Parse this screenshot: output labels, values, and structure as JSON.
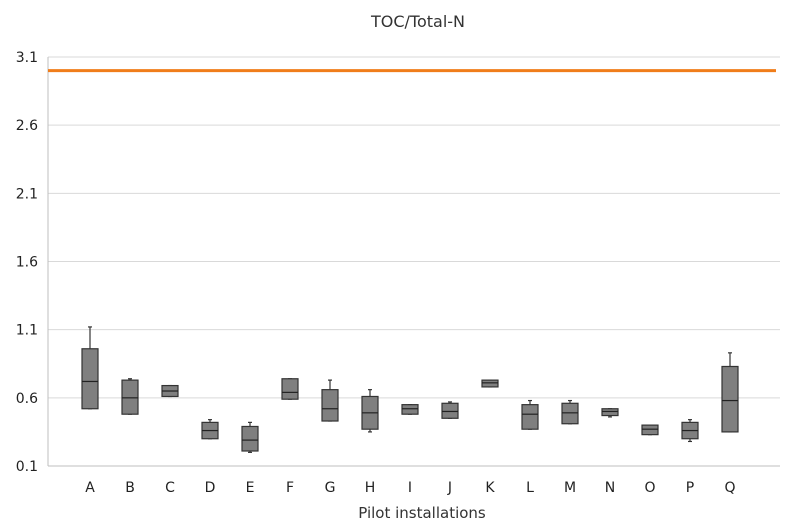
{
  "chart_data": {
    "type": "box",
    "title": "TOC/Total-N",
    "xlabel": "Pilot installations",
    "ylabel": "",
    "ylim": [
      0.1,
      3.1
    ],
    "yticks": [
      "3.1",
      "2.6",
      "2.1",
      "1.6",
      "1.1",
      "0.6",
      "0.1"
    ],
    "grid": true,
    "reference_line": {
      "value": 3.0,
      "color": "#f07d1a"
    },
    "box_color": "#7f7f7f",
    "categories": [
      "A",
      "B",
      "C",
      "D",
      "E",
      "F",
      "G",
      "H",
      "I",
      "J",
      "K",
      "L",
      "M",
      "N",
      "O",
      "P",
      "Q"
    ],
    "boxes": [
      {
        "label": "A",
        "min": 0.52,
        "q1": 0.52,
        "median": 0.72,
        "q3": 0.96,
        "max": 1.12
      },
      {
        "label": "B",
        "min": 0.48,
        "q1": 0.48,
        "median": 0.6,
        "q3": 0.73,
        "max": 0.74
      },
      {
        "label": "C",
        "min": 0.61,
        "q1": 0.61,
        "median": 0.65,
        "q3": 0.69,
        "max": 0.69
      },
      {
        "label": "D",
        "min": 0.3,
        "q1": 0.3,
        "median": 0.36,
        "q3": 0.42,
        "max": 0.44
      },
      {
        "label": "E",
        "min": 0.2,
        "q1": 0.21,
        "median": 0.29,
        "q3": 0.39,
        "max": 0.42
      },
      {
        "label": "F",
        "min": 0.59,
        "q1": 0.59,
        "median": 0.64,
        "q3": 0.74,
        "max": 0.74
      },
      {
        "label": "G",
        "min": 0.43,
        "q1": 0.43,
        "median": 0.52,
        "q3": 0.66,
        "max": 0.73
      },
      {
        "label": "H",
        "min": 0.35,
        "q1": 0.37,
        "median": 0.49,
        "q3": 0.61,
        "max": 0.66
      },
      {
        "label": "I",
        "min": 0.48,
        "q1": 0.48,
        "median": 0.52,
        "q3": 0.55,
        "max": 0.55
      },
      {
        "label": "J",
        "min": 0.45,
        "q1": 0.45,
        "median": 0.5,
        "q3": 0.56,
        "max": 0.57
      },
      {
        "label": "K",
        "min": 0.68,
        "q1": 0.68,
        "median": 0.71,
        "q3": 0.73,
        "max": 0.73
      },
      {
        "label": "L",
        "min": 0.37,
        "q1": 0.37,
        "median": 0.48,
        "q3": 0.55,
        "max": 0.58
      },
      {
        "label": "M",
        "min": 0.41,
        "q1": 0.41,
        "median": 0.49,
        "q3": 0.56,
        "max": 0.58
      },
      {
        "label": "N",
        "min": 0.46,
        "q1": 0.47,
        "median": 0.5,
        "q3": 0.52,
        "max": 0.52
      },
      {
        "label": "O",
        "min": 0.33,
        "q1": 0.33,
        "median": 0.37,
        "q3": 0.4,
        "max": 0.4
      },
      {
        "label": "P",
        "min": 0.28,
        "q1": 0.3,
        "median": 0.36,
        "q3": 0.42,
        "max": 0.44
      },
      {
        "label": "Q",
        "min": 0.35,
        "q1": 0.35,
        "median": 0.58,
        "q3": 0.83,
        "max": 0.93
      }
    ]
  }
}
